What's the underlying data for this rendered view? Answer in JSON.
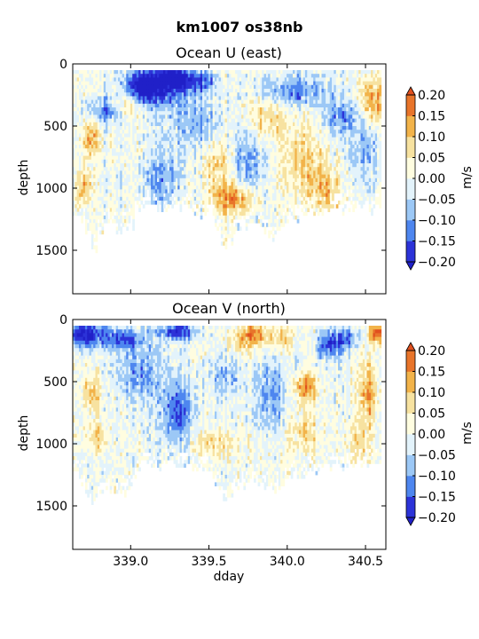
{
  "figure": {
    "suptitle": "km1007 os38nb"
  },
  "colors": {
    "levels": [
      -0.2,
      -0.15,
      -0.1,
      -0.05,
      0.0,
      0.05,
      0.1,
      0.15,
      0.2
    ],
    "bins": [
      "#2c33d8",
      "#4e86ef",
      "#9cc8f6",
      "#e3f3fb",
      "#fffde0",
      "#f7e2a0",
      "#f2b34a",
      "#e8742a"
    ],
    "over": "#e0501e",
    "under": "#2020c8",
    "nodata": "#ffffff"
  },
  "chart_data": [
    {
      "type": "heatmap",
      "title": "Ocean U (east)",
      "ylabel": "depth",
      "xlabel": "",
      "xlim": [
        338.63,
        340.63
      ],
      "ylim": [
        1850,
        0
      ],
      "xticks": [
        339.0,
        339.5,
        340.0,
        340.5
      ],
      "xtick_labels": [
        "",
        "",
        "",
        ""
      ],
      "yticks": [
        0,
        500,
        1000,
        1500
      ],
      "colorbar": {
        "label": "m/s",
        "ticks": [
          "0.20",
          "0.15",
          "0.10",
          "0.05",
          "0.00",
          "−0.05",
          "−0.10",
          "−0.15",
          "−0.20"
        ]
      },
      "depth_top": 50,
      "max_depth_bottom": [
        1180,
        1250,
        1330,
        1480,
        1350,
        1290,
        1260,
        1340,
        1330,
        1300,
        1150,
        1140,
        1140,
        1140,
        1140,
        1140,
        1140,
        1150,
        1140,
        1160,
        1190,
        1180,
        1220,
        1330,
        1450,
        1410,
        1350,
        1320,
        1300,
        1290,
        1320,
        1370,
        1370,
        1350,
        1300,
        1250,
        1230,
        1210,
        1190,
        1200,
        1180,
        1170,
        1160,
        1170,
        1150,
        1160,
        1150,
        1170,
        1180,
        1160
      ],
      "features": [
        {
          "x": 339.15,
          "depth": 180,
          "value": -0.22,
          "rx": 0.18,
          "ry": 150
        },
        {
          "x": 339.28,
          "depth": 110,
          "value": -0.21,
          "rx": 0.1,
          "ry": 80
        },
        {
          "x": 339.45,
          "depth": 140,
          "value": -0.14,
          "rx": 0.1,
          "ry": 90
        },
        {
          "x": 339.06,
          "depth": 200,
          "value": -0.12,
          "rx": 0.08,
          "ry": 120
        },
        {
          "x": 338.85,
          "depth": 380,
          "value": -0.13,
          "rx": 0.12,
          "ry": 100
        },
        {
          "x": 338.75,
          "depth": 600,
          "value": 0.13,
          "rx": 0.05,
          "ry": 150
        },
        {
          "x": 338.98,
          "depth": 330,
          "value": 0.11,
          "rx": 0.09,
          "ry": 110
        },
        {
          "x": 339.4,
          "depth": 470,
          "value": -0.09,
          "rx": 0.18,
          "ry": 220
        },
        {
          "x": 339.55,
          "depth": 800,
          "value": 0.08,
          "rx": 0.09,
          "ry": 200
        },
        {
          "x": 339.65,
          "depth": 1080,
          "value": 0.17,
          "rx": 0.12,
          "ry": 120
        },
        {
          "x": 339.75,
          "depth": 780,
          "value": -0.11,
          "rx": 0.08,
          "ry": 280
        },
        {
          "x": 339.85,
          "depth": 430,
          "value": 0.08,
          "rx": 0.14,
          "ry": 170
        },
        {
          "x": 340.05,
          "depth": 220,
          "value": -0.13,
          "rx": 0.2,
          "ry": 120
        },
        {
          "x": 340.1,
          "depth": 780,
          "value": 0.09,
          "rx": 0.12,
          "ry": 300
        },
        {
          "x": 340.25,
          "depth": 1000,
          "value": 0.11,
          "rx": 0.1,
          "ry": 200
        },
        {
          "x": 340.35,
          "depth": 420,
          "value": -0.11,
          "rx": 0.12,
          "ry": 130
        },
        {
          "x": 340.55,
          "depth": 300,
          "value": 0.14,
          "rx": 0.1,
          "ry": 180
        },
        {
          "x": 340.5,
          "depth": 700,
          "value": -0.08,
          "rx": 0.1,
          "ry": 250
        },
        {
          "x": 338.7,
          "depth": 1000,
          "value": 0.12,
          "rx": 0.05,
          "ry": 120
        },
        {
          "x": 339.2,
          "depth": 950,
          "value": -0.1,
          "rx": 0.12,
          "ry": 250
        }
      ]
    },
    {
      "type": "heatmap",
      "title": "Ocean V (north)",
      "ylabel": "depth",
      "xlabel": "dday",
      "xlim": [
        338.63,
        340.63
      ],
      "ylim": [
        1850,
        0
      ],
      "xticks": [
        339.0,
        339.5,
        340.0,
        340.5
      ],
      "xtick_labels": [
        "339.0",
        "339.5",
        "340.0",
        "340.5"
      ],
      "yticks": [
        0,
        500,
        1000,
        1500
      ],
      "colorbar": {
        "label": "m/s",
        "ticks": [
          "0.20",
          "0.15",
          "0.10",
          "0.05",
          "0.00",
          "−0.05",
          "−0.10",
          "−0.15",
          "−0.20"
        ]
      },
      "depth_top": 50,
      "max_depth_bottom": [
        1200,
        1280,
        1400,
        1480,
        1360,
        1320,
        1360,
        1400,
        1390,
        1340,
        1230,
        1160,
        1160,
        1160,
        1160,
        1160,
        1160,
        1180,
        1160,
        1180,
        1200,
        1200,
        1240,
        1340,
        1450,
        1410,
        1360,
        1330,
        1310,
        1300,
        1320,
        1370,
        1370,
        1350,
        1320,
        1260,
        1240,
        1220,
        1200,
        1200,
        1190,
        1180,
        1170,
        1180,
        1160,
        1170,
        1160,
        1180,
        1190,
        1170
      ],
      "features": [
        {
          "x": 338.7,
          "depth": 120,
          "value": -0.22,
          "rx": 0.12,
          "ry": 100
        },
        {
          "x": 338.95,
          "depth": 160,
          "value": -0.17,
          "rx": 0.12,
          "ry": 90
        },
        {
          "x": 339.3,
          "depth": 100,
          "value": -0.2,
          "rx": 0.12,
          "ry": 60
        },
        {
          "x": 339.3,
          "depth": 750,
          "value": -0.15,
          "rx": 0.1,
          "ry": 250
        },
        {
          "x": 338.75,
          "depth": 600,
          "value": 0.12,
          "rx": 0.05,
          "ry": 160
        },
        {
          "x": 338.78,
          "depth": 950,
          "value": 0.1,
          "rx": 0.07,
          "ry": 100
        },
        {
          "x": 339.05,
          "depth": 450,
          "value": -0.1,
          "rx": 0.15,
          "ry": 200
        },
        {
          "x": 339.7,
          "depth": 200,
          "value": 0.06,
          "rx": 0.1,
          "ry": 120
        },
        {
          "x": 339.78,
          "depth": 120,
          "value": 0.16,
          "rx": 0.08,
          "ry": 80
        },
        {
          "x": 339.95,
          "depth": 150,
          "value": 0.08,
          "rx": 0.1,
          "ry": 100
        },
        {
          "x": 339.9,
          "depth": 600,
          "value": -0.1,
          "rx": 0.12,
          "ry": 280
        },
        {
          "x": 340.12,
          "depth": 540,
          "value": 0.16,
          "rx": 0.08,
          "ry": 110
        },
        {
          "x": 340.1,
          "depth": 900,
          "value": 0.08,
          "rx": 0.1,
          "ry": 200
        },
        {
          "x": 340.28,
          "depth": 200,
          "value": -0.17,
          "rx": 0.08,
          "ry": 110
        },
        {
          "x": 340.4,
          "depth": 150,
          "value": -0.12,
          "rx": 0.08,
          "ry": 80
        },
        {
          "x": 340.52,
          "depth": 600,
          "value": 0.13,
          "rx": 0.05,
          "ry": 250
        },
        {
          "x": 340.58,
          "depth": 100,
          "value": 0.22,
          "rx": 0.06,
          "ry": 80
        },
        {
          "x": 339.55,
          "depth": 1000,
          "value": 0.08,
          "rx": 0.15,
          "ry": 120
        },
        {
          "x": 340.45,
          "depth": 1000,
          "value": 0.06,
          "rx": 0.08,
          "ry": 150
        },
        {
          "x": 339.6,
          "depth": 450,
          "value": -0.08,
          "rx": 0.1,
          "ry": 150
        }
      ]
    }
  ]
}
